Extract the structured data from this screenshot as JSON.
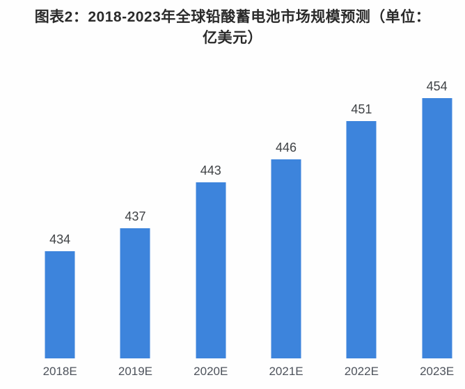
{
  "title_lines": [
    "图表2：2018-2023年全球铅酸蓄电池市场规模预测（单位：",
    "亿美元）"
  ],
  "chart_data": {
    "type": "bar",
    "title": "图表2：2018-2023年全球铅酸蓄电池市场规模预测（单位：亿美元）",
    "categories": [
      "2018E",
      "2019E",
      "2020E",
      "2021E",
      "2022E",
      "2023E"
    ],
    "values": [
      434,
      437,
      443,
      446,
      451,
      454
    ],
    "xlabel": "",
    "ylabel": "亿美元",
    "ylim": [
      420,
      460
    ],
    "grid": false,
    "legend": "none",
    "data_labels": true,
    "bar_color": "#3d84dc",
    "value_label_color": "#3f4245",
    "category_label_color": "#4d525b",
    "title_color": "#2a2a2a",
    "background_color": "#fefefe"
  }
}
